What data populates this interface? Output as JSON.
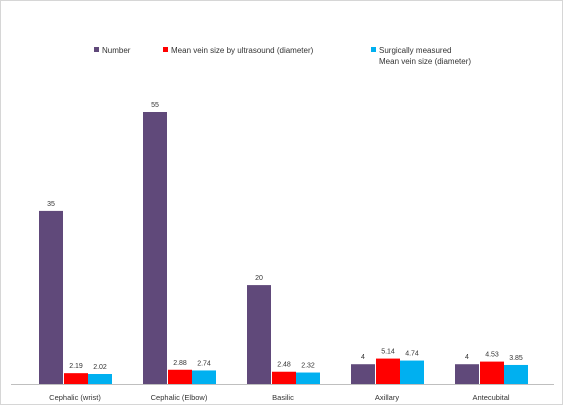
{
  "chart_data": {
    "type": "bar",
    "categories": [
      "Cephalic (wrist)",
      "Cephalic (Elbow)",
      "Basilic",
      "Axillary",
      "Antecubital"
    ],
    "series": [
      {
        "name": "Number",
        "values": [
          35,
          55,
          20,
          4,
          4
        ],
        "color": "#60497a",
        "labels": [
          "35",
          "55",
          "20",
          "4",
          "4"
        ]
      },
      {
        "name": "Mean vein size by ultrasound (diameter)",
        "values": [
          2.19,
          2.88,
          2.48,
          5.14,
          4.53
        ],
        "color": "#ff0000",
        "labels": [
          "2.19",
          "2.88",
          "2.48",
          "5.14",
          "4.53"
        ]
      },
      {
        "name": "Surgically measured Mean vein size (diameter)",
        "values": [
          2.02,
          2.74,
          2.32,
          4.74,
          3.85
        ],
        "color": "#00b0f0",
        "labels": [
          "2.02",
          "2.74",
          "2.32",
          "4.74",
          "3.85"
        ]
      }
    ],
    "ylim": [
      0,
      60
    ],
    "grid": false,
    "legend_position": "top",
    "title": "",
    "xlabel": "",
    "ylabel": ""
  },
  "legend": {
    "item1": "Number",
    "item2": "Mean vein size by ultrasound (diameter)",
    "item3_line1": "Surgically measured",
    "item3_line2": "Mean vein size (diameter)"
  }
}
